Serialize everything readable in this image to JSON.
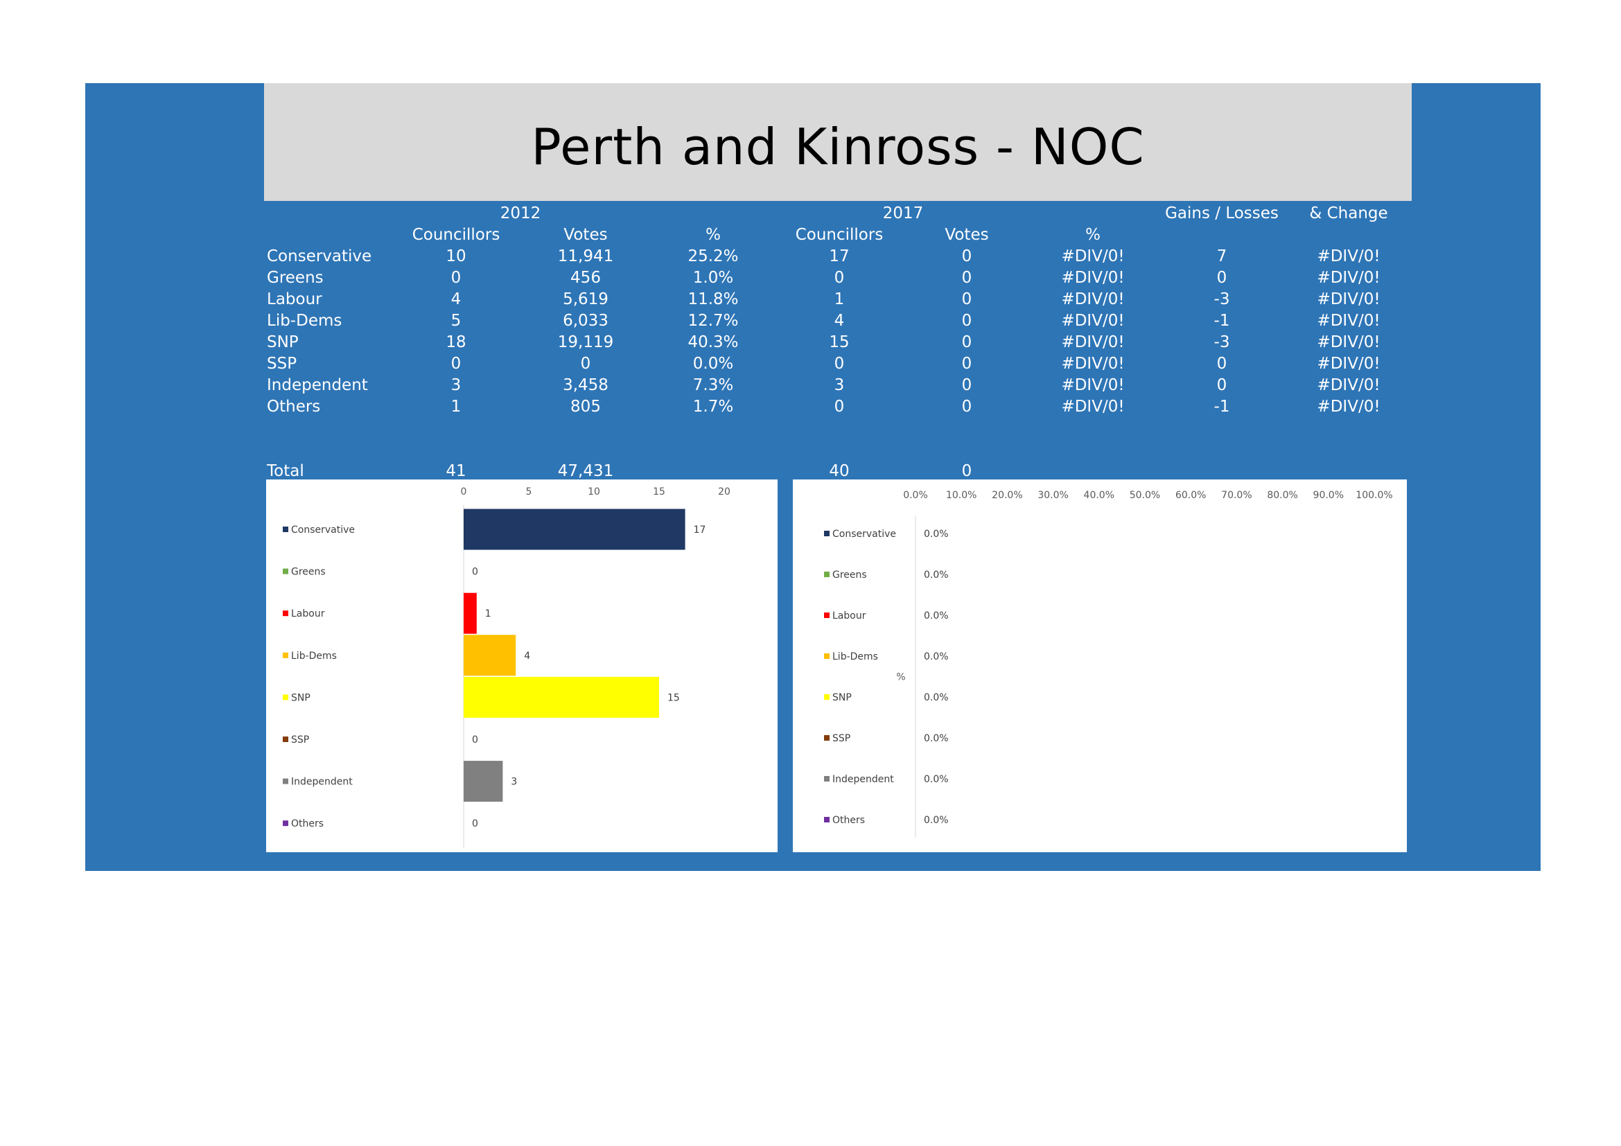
{
  "title": "Perth and Kinross - NOC",
  "table": {
    "year_2012": "2012",
    "year_2017": "2017",
    "gains_losses": "Gains / Losses",
    "pct_change": "& Change",
    "col_councillors": "Councillors",
    "col_votes": "Votes",
    "col_pct": "%",
    "rows": [
      {
        "party": "Conservative",
        "c2012": "10",
        "v2012": "11,941",
        "p2012": "25.2%",
        "c2017": "17",
        "v2017": "0",
        "p2017": "#DIV/0!",
        "gl": "7",
        "chg": "#DIV/0!"
      },
      {
        "party": "Greens",
        "c2012": "0",
        "v2012": "456",
        "p2012": "1.0%",
        "c2017": "0",
        "v2017": "0",
        "p2017": "#DIV/0!",
        "gl": "0",
        "chg": "#DIV/0!"
      },
      {
        "party": "Labour",
        "c2012": "4",
        "v2012": "5,619",
        "p2012": "11.8%",
        "c2017": "1",
        "v2017": "0",
        "p2017": "#DIV/0!",
        "gl": "-3",
        "chg": "#DIV/0!"
      },
      {
        "party": "Lib-Dems",
        "c2012": "5",
        "v2012": "6,033",
        "p2012": "12.7%",
        "c2017": "4",
        "v2017": "0",
        "p2017": "#DIV/0!",
        "gl": "-1",
        "chg": "#DIV/0!"
      },
      {
        "party": "SNP",
        "c2012": "18",
        "v2012": "19,119",
        "p2012": "40.3%",
        "c2017": "15",
        "v2017": "0",
        "p2017": "#DIV/0!",
        "gl": "-3",
        "chg": "#DIV/0!"
      },
      {
        "party": "SSP",
        "c2012": "0",
        "v2012": "0",
        "p2012": "0.0%",
        "c2017": "0",
        "v2017": "0",
        "p2017": "#DIV/0!",
        "gl": "0",
        "chg": "#DIV/0!"
      },
      {
        "party": "Independent",
        "c2012": "3",
        "v2012": "3,458",
        "p2012": "7.3%",
        "c2017": "3",
        "v2017": "0",
        "p2017": "#DIV/0!",
        "gl": "0",
        "chg": "#DIV/0!"
      },
      {
        "party": "Others",
        "c2012": "1",
        "v2012": "805",
        "p2012": "1.7%",
        "c2017": "0",
        "v2017": "0",
        "p2017": "#DIV/0!",
        "gl": "-1",
        "chg": "#DIV/0!"
      }
    ],
    "total": {
      "label": "Total",
      "c2012": "41",
      "v2012": "47,431",
      "c2017": "40",
      "v2017": "0"
    }
  },
  "colors": {
    "panel": "#2e75b6",
    "title_bg": "#d9d9d9",
    "Conservative": "#1f3864",
    "Greens": "#70ad47",
    "Labour": "#ff0000",
    "Lib-Dems": "#ffc000",
    "SNP": "#ffff00",
    "SSP": "#843c0c",
    "Independent": "#808080",
    "Others": "#7030a0"
  },
  "chart_data": [
    {
      "type": "bar",
      "orientation": "horizontal",
      "categories": [
        "Conservative",
        "Greens",
        "Labour",
        "Lib-Dems",
        "SNP",
        "SSP",
        "Independent",
        "Others"
      ],
      "values": [
        17,
        0,
        1,
        4,
        15,
        0,
        3,
        0
      ],
      "data_labels": [
        "17",
        "0",
        "1",
        "4",
        "15",
        "0",
        "3",
        "0"
      ],
      "xlim": [
        0,
        20
      ],
      "ticks": [
        "0",
        "5",
        "10",
        "15",
        "20"
      ],
      "tick_values": [
        0,
        5,
        10,
        15,
        20
      ],
      "axis_position": "top",
      "legend": "left"
    },
    {
      "type": "bar",
      "orientation": "horizontal",
      "categories": [
        "Conservative",
        "Greens",
        "Labour",
        "Lib-Dems",
        "SNP",
        "SSP",
        "Independent",
        "Others"
      ],
      "values": [
        0,
        0,
        0,
        0,
        0,
        0,
        0,
        0
      ],
      "data_labels": [
        "0.0%",
        "0.0%",
        "0.0%",
        "0.0%",
        "0.0%",
        "0.0%",
        "0.0%",
        "0.0%"
      ],
      "xlim": [
        0,
        1
      ],
      "ticks": [
        "0.0%",
        "10.0%",
        "20.0%",
        "30.0%",
        "40.0%",
        "50.0%",
        "60.0%",
        "70.0%",
        "80.0%",
        "90.0%",
        "100.0%"
      ],
      "tick_values": [
        0,
        0.1,
        0.2,
        0.3,
        0.4,
        0.5,
        0.6,
        0.7,
        0.8,
        0.9,
        1.0
      ],
      "axis_label": "%",
      "axis_position": "top",
      "legend": "left"
    }
  ]
}
